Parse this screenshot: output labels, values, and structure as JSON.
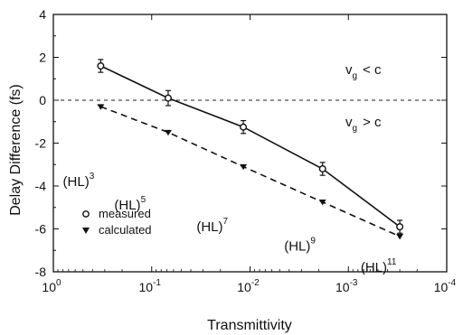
{
  "chart_data": {
    "type": "line",
    "xlabel": "Transmittivity",
    "ylabel": "Delay Difference (fs)",
    "x_scale": "log-reversed",
    "xlim": [
      1,
      0.0001
    ],
    "ylim": [
      -8,
      4
    ],
    "x_ticks": [
      {
        "value": 1,
        "base": "10",
        "exp": "0"
      },
      {
        "value": 0.1,
        "base": "10",
        "exp": "-1"
      },
      {
        "value": 0.01,
        "base": "10",
        "exp": "-2"
      },
      {
        "value": 0.001,
        "base": "10",
        "exp": "-3"
      },
      {
        "value": 0.0001,
        "base": "10",
        "exp": "-4"
      }
    ],
    "y_ticks": [
      4,
      2,
      0,
      -2,
      -4,
      -6,
      -8
    ],
    "reference_line": {
      "y": 0,
      "style": "dashed"
    },
    "series": [
      {
        "name": "measured",
        "marker": "open-circle",
        "line_style": "solid",
        "x": [
          0.33,
          0.068,
          0.0117,
          0.00183,
          0.0003
        ],
        "y": [
          1.6,
          0.1,
          -1.25,
          -3.2,
          -5.9
        ],
        "err": [
          0.3,
          0.35,
          0.3,
          0.3,
          0.3
        ]
      },
      {
        "name": "calculated",
        "marker": "filled-triangle-down",
        "line_style": "dashed",
        "x": [
          0.33,
          0.068,
          0.0117,
          0.00183,
          0.0003
        ],
        "y": [
          -0.3,
          -1.5,
          -3.1,
          -4.75,
          -6.35
        ]
      }
    ],
    "annotations": {
      "region_above": {
        "v": "v",
        "sub": "g",
        "rel": "< c"
      },
      "region_below": {
        "v": "v",
        "sub": "g",
        "rel": "> c"
      },
      "stacks": [
        {
          "base": "(HL)",
          "exp": "3",
          "x": 0.8,
          "y": -4.0
        },
        {
          "base": "(HL)",
          "exp": "5",
          "x": 0.24,
          "y": -5.1
        },
        {
          "base": "(HL)",
          "exp": "7",
          "x": 0.035,
          "y": -6.1
        },
        {
          "base": "(HL)",
          "exp": "9",
          "x": 0.0045,
          "y": -7.0
        },
        {
          "base": "(HL)",
          "exp": "11",
          "x": 0.00075,
          "y": -8.0
        }
      ]
    },
    "legend": {
      "placement": "lower-left",
      "entries": [
        {
          "label": "measured",
          "marker": "open-circle"
        },
        {
          "label": "calculated",
          "marker": "filled-triangle-down"
        }
      ]
    },
    "grid": false
  }
}
